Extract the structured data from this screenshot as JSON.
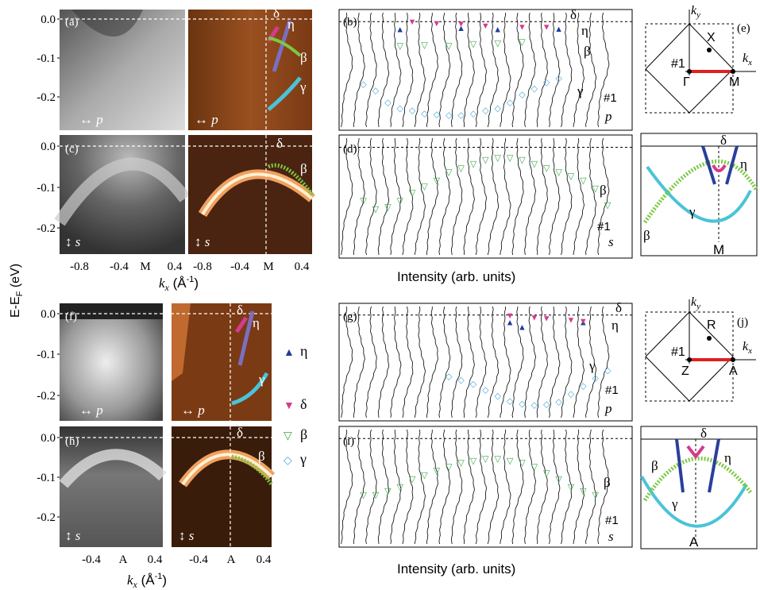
{
  "figure": {
    "ylabel": "E-E",
    "ylabel_sub": "F",
    "ylabel_unit": " (eV)",
    "xlabel_k": "k",
    "xlabel_k_sub": "x",
    "xlabel_unit": " (Å",
    "xlabel_exp": "-1",
    "xlabel_close": ")",
    "intensity_label": "Intensity (arb. units)",
    "yticks": [
      "0.0",
      "-0.1",
      "-0.2"
    ],
    "xticks_top": [
      "-0.8",
      "-0.4",
      "M",
      "0.4",
      "-0.8",
      "-0.4",
      "M",
      "0.4"
    ],
    "xticks_bottom": [
      "-0.4",
      "A",
      "0.4",
      "-0.4",
      "A",
      "0.4"
    ],
    "legend": [
      {
        "symbol": "▲",
        "label": "η",
        "color": "#1f3c9c"
      },
      {
        "symbol": "▼",
        "label": "δ",
        "color": "#d63a8f"
      },
      {
        "symbol": "▽",
        "label": "β",
        "color": "#3aa848"
      },
      {
        "symbol": "◇",
        "label": "γ",
        "color": "#4aa8d8"
      }
    ],
    "panels": {
      "a": "(a)",
      "b": "(b)",
      "c": "(c)",
      "d": "(d)",
      "e": "(e)",
      "f": "(f)",
      "g": "(g)",
      "h": "(h)",
      "i": "(i)",
      "j": "(j)"
    },
    "pol_p": "p",
    "pol_s": "s",
    "cut_label": "#1",
    "band_labels": {
      "delta": "δ",
      "eta": "η",
      "beta": "β",
      "gamma": "γ"
    },
    "bz_top": {
      "ky": "k",
      "ky_sub": "y",
      "kx": "k",
      "kx_sub": "x",
      "X": "X",
      "G": "Γ",
      "M": "M",
      "cut": "#1"
    },
    "bz_bottom": {
      "ky": "k",
      "ky_sub": "y",
      "kx": "k",
      "kx_sub": "x",
      "R": "R",
      "Z": "Z",
      "A": "A",
      "cut": "#1"
    },
    "schematic_top_point": "M",
    "schematic_bottom_point": "A"
  },
  "chart_data": [
    {
      "type": "scatter",
      "panel": "(b)",
      "polarization": "p",
      "series": [
        {
          "name": "η",
          "symbol": "▲",
          "x": [
            4,
            9,
            12,
            17
          ],
          "y": [
            -0.018,
            -0.015,
            -0.018,
            -0.017
          ]
        },
        {
          "name": "δ",
          "symbol": "▼",
          "x": [
            5,
            7,
            9,
            11,
            14,
            16
          ],
          "y": [
            0.0,
            -0.004,
            -0.005,
            -0.009,
            -0.012,
            -0.012
          ]
        },
        {
          "name": "β",
          "symbol": "▽",
          "x": [
            4,
            6,
            8,
            10,
            12,
            14
          ],
          "y": [
            -0.06,
            -0.058,
            -0.06,
            -0.055,
            -0.053,
            -0.05
          ]
        },
        {
          "name": "γ",
          "symbol": "◇",
          "x": [
            1,
            2,
            3,
            4,
            5,
            6,
            7,
            8,
            9,
            10,
            11,
            12,
            13,
            14,
            15,
            16,
            17
          ],
          "y": [
            -0.155,
            -0.17,
            -0.2,
            -0.215,
            -0.22,
            -0.228,
            -0.23,
            -0.232,
            -0.232,
            -0.228,
            -0.22,
            -0.215,
            -0.2,
            -0.18,
            -0.165,
            -0.15,
            -0.14
          ]
        }
      ],
      "ylim": [
        -0.27,
        0.03
      ]
    },
    {
      "type": "scatter",
      "panel": "(d)",
      "polarization": "s",
      "series": [
        {
          "name": "β",
          "symbol": "▽",
          "x": [
            1,
            2,
            3,
            4,
            5,
            6,
            7,
            8,
            9,
            10,
            11,
            12,
            13,
            14,
            15,
            16,
            17,
            18,
            19,
            20,
            21
          ],
          "y": [
            -0.13,
            -0.15,
            -0.145,
            -0.13,
            -0.11,
            -0.095,
            -0.08,
            -0.06,
            -0.05,
            -0.04,
            -0.03,
            -0.025,
            -0.025,
            -0.03,
            -0.04,
            -0.05,
            -0.06,
            -0.07,
            -0.08,
            -0.1,
            -0.14
          ]
        }
      ],
      "ylim": [
        -0.27,
        0.03
      ]
    },
    {
      "type": "scatter",
      "panel": "(g)",
      "polarization": "p",
      "series": [
        {
          "name": "η",
          "symbol": "▲",
          "x": [
            13,
            14,
            19
          ],
          "y": [
            -0.018,
            -0.03,
            -0.018
          ]
        },
        {
          "name": "δ",
          "symbol": "▼",
          "x": [
            13,
            15,
            16,
            18,
            19
          ],
          "y": [
            0.0,
            -0.005,
            -0.008,
            -0.012,
            -0.015
          ]
        },
        {
          "name": "γ",
          "symbol": "◇",
          "x": [
            8,
            9,
            10,
            11,
            12,
            13,
            14,
            15,
            16,
            17,
            18,
            19,
            20,
            21
          ],
          "y": [
            -0.155,
            -0.165,
            -0.175,
            -0.19,
            -0.205,
            -0.218,
            -0.225,
            -0.228,
            -0.226,
            -0.22,
            -0.2,
            -0.18,
            -0.16,
            -0.14
          ]
        }
      ],
      "ylim": [
        -0.27,
        0.03
      ]
    },
    {
      "type": "scatter",
      "panel": "(i)",
      "polarization": "s",
      "series": [
        {
          "name": "β",
          "symbol": "▽",
          "x": [
            1,
            2,
            3,
            4,
            5,
            6,
            7,
            8,
            9,
            10,
            11,
            12,
            13,
            14,
            15,
            16,
            17,
            18,
            19,
            20
          ],
          "y": [
            -0.14,
            -0.14,
            -0.13,
            -0.12,
            -0.1,
            -0.09,
            -0.08,
            -0.07,
            -0.06,
            -0.055,
            -0.05,
            -0.05,
            -0.055,
            -0.06,
            -0.07,
            -0.085,
            -0.1,
            -0.12,
            -0.13,
            -0.14
          ]
        }
      ],
      "ylim": [
        -0.27,
        0.03
      ]
    }
  ]
}
